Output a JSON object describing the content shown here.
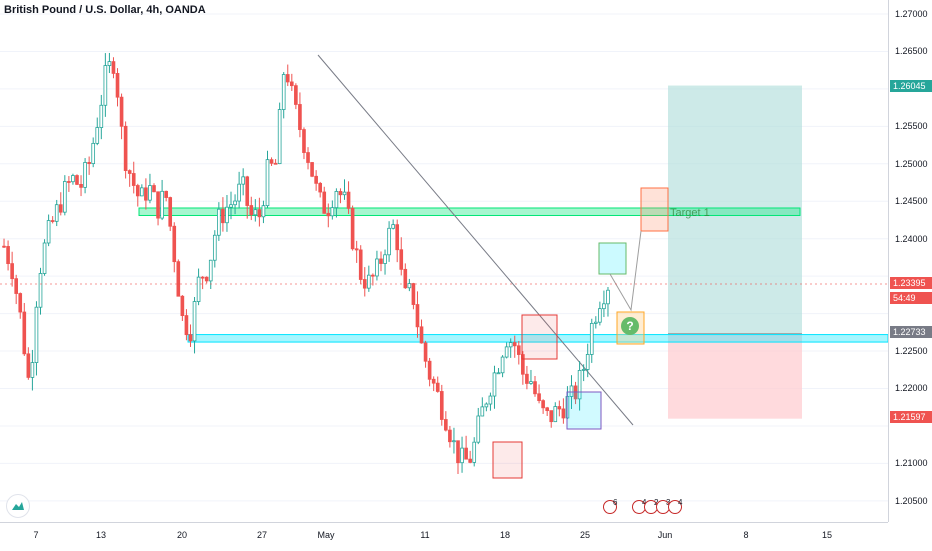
{
  "title": "British Pound / U.S. Dollar, 4h, OANDA",
  "colors": {
    "up": "#26a69a",
    "down": "#ef5350",
    "zone_green": "#00e676",
    "zone_cyan": "#00e5ff",
    "profit": "#b2dfdb",
    "loss": "#ffcdd2"
  },
  "price_axis": {
    "ticks": [
      "1.27000",
      "1.26500",
      "1.26045",
      "1.25500",
      "1.25000",
      "1.24500",
      "1.24000",
      "1.23395",
      "54:49",
      "1.22733",
      "1.22500",
      "1.22000",
      "1.21597",
      "1.21000",
      "1.20500"
    ]
  },
  "price_labels": {
    "target": {
      "value": "1.26045",
      "color": "#26a69a"
    },
    "current": {
      "value": "1.23395",
      "color": "#ef5350"
    },
    "countdown": {
      "value": "54:49",
      "color": "#ef5350"
    },
    "entry": {
      "value": "1.22733",
      "color": "#787b86"
    },
    "stop": {
      "value": "1.21597",
      "color": "#ef5350"
    }
  },
  "time_axis": {
    "ticks": [
      "7",
      "13",
      "20",
      "27",
      "May",
      "11",
      "18",
      "25",
      "Jun",
      "8",
      "15"
    ]
  },
  "annotations": {
    "target_label": "Target 1",
    "question": "?"
  },
  "events": {
    "counts": [
      "6",
      "4",
      "2",
      "3",
      "4"
    ]
  },
  "chart_data": {
    "type": "candlestick",
    "symbol": "GBPUSD",
    "interval": "4h",
    "ylim": [
      1.2045,
      1.272
    ],
    "y_ticks": [
      1.205,
      1.21,
      1.215,
      1.22,
      1.225,
      1.23,
      1.235,
      1.24,
      1.245,
      1.25,
      1.255,
      1.26,
      1.265,
      1.27
    ],
    "x_ticks": [
      "7",
      "13",
      "20",
      "27",
      "May",
      "11",
      "18",
      "25",
      "Jun",
      "8",
      "15"
    ],
    "price_path": [
      [
        1.239,
        1.236
      ],
      [
        1.229,
        1.22
      ],
      [
        1.235,
        1.24
      ],
      [
        1.243,
        1.246
      ],
      [
        1.248,
        1.247
      ],
      [
        1.25,
        1.256
      ],
      [
        1.262,
        1.264
      ],
      [
        1.252,
        1.248
      ],
      [
        1.245,
        1.247
      ],
      [
        1.244,
        1.246
      ],
      [
        1.238,
        1.229
      ],
      [
        1.228,
        1.235
      ],
      [
        1.236,
        1.242
      ],
      [
        1.244,
        1.245
      ],
      [
        1.247,
        1.243
      ],
      [
        1.243,
        1.249
      ],
      [
        1.25,
        1.264
      ],
      [
        1.258,
        1.254
      ],
      [
        1.25,
        1.245
      ],
      [
        1.244,
        1.247
      ],
      [
        1.245,
        1.24
      ],
      [
        1.235,
        1.234
      ],
      [
        1.236,
        1.24
      ],
      [
        1.242,
        1.232
      ],
      [
        1.233,
        1.226
      ],
      [
        1.222,
        1.219
      ],
      [
        1.216,
        1.212
      ],
      [
        1.21,
        1.211
      ],
      [
        1.216,
        1.22
      ],
      [
        1.223,
        1.227
      ],
      [
        1.226,
        1.222
      ],
      [
        1.221,
        1.217
      ],
      [
        1.216,
        1.217
      ],
      [
        1.218,
        1.219
      ],
      [
        1.222,
        1.228
      ],
      [
        1.232,
        1.234
      ]
    ],
    "horizontal_zones": [
      {
        "name": "resistance",
        "low": 1.2431,
        "high": 1.2441
      },
      {
        "name": "support",
        "low": 1.2262,
        "high": 1.2272
      }
    ],
    "position": {
      "entry": 1.22733,
      "target": 1.26045,
      "stop": 1.21597
    },
    "current_price": 1.23395
  }
}
